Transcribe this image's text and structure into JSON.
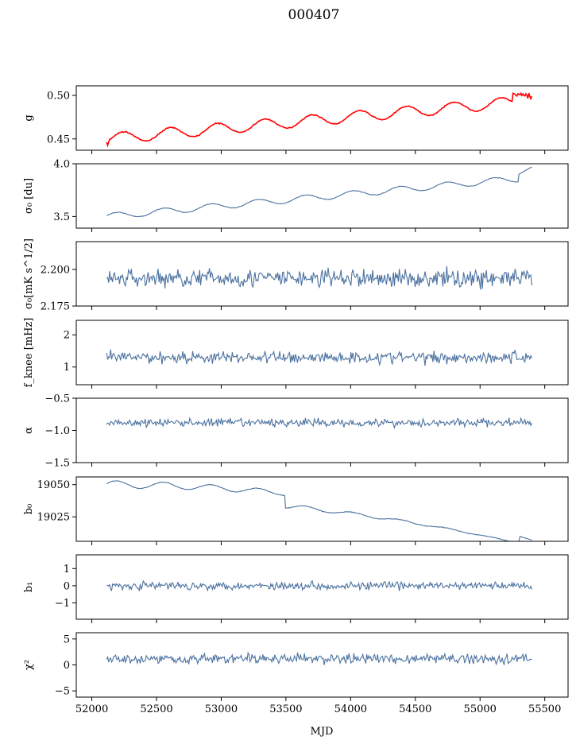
{
  "figure": {
    "title": "000407",
    "xlabel": "MJD",
    "x_ticks": [
      52000,
      52500,
      53000,
      53500,
      54000,
      54500,
      55000,
      55500
    ],
    "x_tick_labels": [
      "52000",
      "52500",
      "53000",
      "53500",
      "54000",
      "54500",
      "55000",
      "55500"
    ],
    "xlim": [
      51880,
      55680
    ]
  },
  "colors": {
    "series": "#4c72a0",
    "model": "#ff0000"
  },
  "chart_data": [
    {
      "type": "line",
      "ylabel": "g",
      "ylim": [
        0.437,
        0.511
      ],
      "y_ticks": [
        0.45,
        0.5
      ],
      "y_tick_labels": [
        "0.45",
        "0.50"
      ],
      "series": [
        {
          "kind": "gain",
          "start": 52115,
          "end": 55400,
          "base": 0.45,
          "trend": 0.044,
          "amp": 0.008,
          "period": 365,
          "color": "model"
        }
      ]
    },
    {
      "type": "line",
      "ylabel": "σ₀ [du]",
      "ylim": [
        3.39,
        4.0
      ],
      "y_ticks": [
        3.5,
        4.0
      ],
      "y_tick_labels": [
        "3.5",
        "4.0"
      ],
      "series": [
        {
          "kind": "sigma",
          "start": 52115,
          "end": 55400,
          "base": 3.5,
          "trend": 0.37,
          "amp": 0.03,
          "period": 365,
          "color": "series"
        }
      ]
    },
    {
      "type": "line",
      "ylabel": "σ₀[mK s^1/2]",
      "ylim": [
        2.175,
        2.219
      ],
      "y_ticks": [
        2.175,
        2.2
      ],
      "y_tick_labels": [
        "2.175",
        "2.200"
      ],
      "series": [
        {
          "kind": "noise",
          "start": 52115,
          "end": 55400,
          "base": 2.194,
          "amp": 0.006,
          "color": "series"
        }
      ]
    },
    {
      "type": "line",
      "ylabel": "f_knee [mHz]",
      "ylim": [
        0.45,
        2.45
      ],
      "y_ticks": [
        1,
        2
      ],
      "y_tick_labels": [
        "1",
        "2"
      ],
      "series": [
        {
          "kind": "noise",
          "start": 52115,
          "end": 55400,
          "base": 1.3,
          "amp": 0.18,
          "color": "series"
        }
      ]
    },
    {
      "type": "line",
      "ylabel": "α",
      "ylim": [
        -1.5,
        -0.5
      ],
      "y_ticks": [
        -1.5,
        -1.0,
        -0.5
      ],
      "y_tick_labels": [
        "−1.5",
        "−1.0",
        "−0.5"
      ],
      "series": [
        {
          "kind": "noise",
          "start": 52115,
          "end": 55400,
          "base": -0.88,
          "amp": 0.06,
          "color": "series"
        }
      ]
    },
    {
      "type": "line",
      "ylabel": "b₀",
      "ylim": [
        19006,
        19056
      ],
      "y_ticks": [
        19025,
        19050
      ],
      "y_tick_labels": [
        "19025",
        "19050"
      ],
      "series": [
        {
          "kind": "offset",
          "start": 52115,
          "end": 55400,
          "color": "series"
        }
      ]
    },
    {
      "type": "line",
      "ylabel": "b₁",
      "ylim": [
        -1.95,
        1.8
      ],
      "y_ticks": [
        -1,
        0,
        1
      ],
      "y_tick_labels": [
        "−1",
        "0",
        "1"
      ],
      "series": [
        {
          "kind": "noise",
          "start": 52115,
          "end": 55400,
          "base": 0.0,
          "amp": 0.22,
          "color": "series"
        }
      ]
    },
    {
      "type": "line",
      "ylabel": "χ²",
      "ylim": [
        -6.2,
        6.2
      ],
      "y_ticks": [
        -5,
        0,
        5
      ],
      "y_tick_labels": [
        "−5",
        "0",
        "5"
      ],
      "series": [
        {
          "kind": "chi",
          "start": 52115,
          "end": 55400,
          "base": 1.2,
          "amp": 0.9,
          "color": "series"
        }
      ]
    }
  ]
}
